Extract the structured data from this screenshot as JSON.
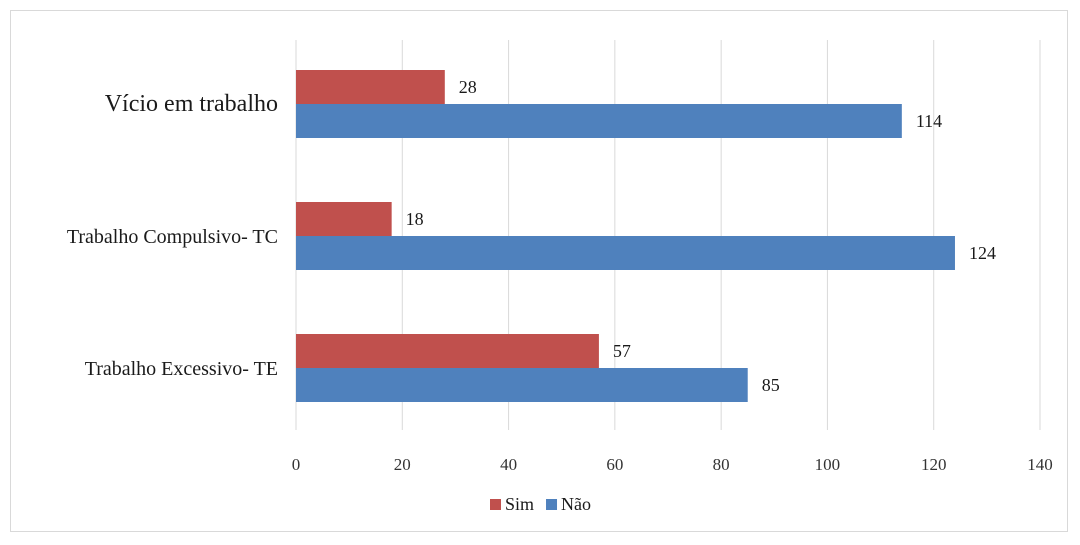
{
  "chart_data": {
    "type": "bar",
    "orientation": "horizontal",
    "categories": [
      "Vício em trabalho",
      "Trabalho Compulsivo- TC",
      "Trabalho Excessivo- TE"
    ],
    "series": [
      {
        "name": "Sim",
        "values": [
          28,
          18,
          57
        ],
        "color": "#c0504d"
      },
      {
        "name": "Não",
        "values": [
          114,
          124,
          85
        ],
        "color": "#4f81bd"
      }
    ],
    "xlim": [
      0,
      140
    ],
    "xticks": [
      0,
      20,
      40,
      60,
      80,
      100,
      120,
      140
    ],
    "grid": true,
    "legend_position": "bottom"
  }
}
